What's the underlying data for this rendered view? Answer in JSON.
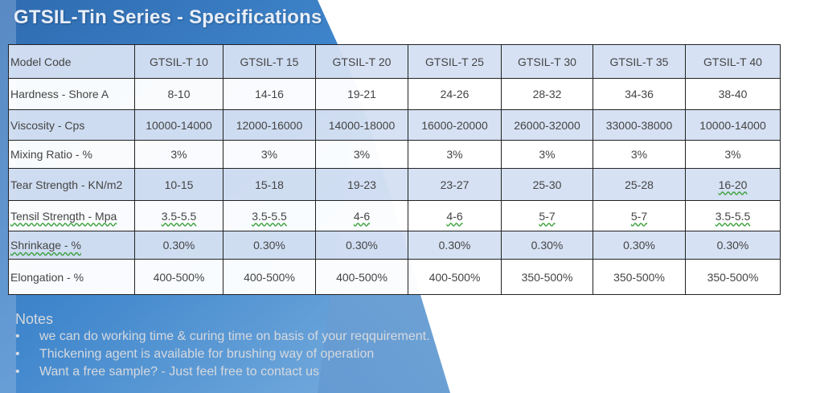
{
  "title": "GTSIL-Tin Series - Specifications",
  "columns": [
    "Model Code",
    "GTSIL-T 10",
    "GTSIL-T 15",
    "GTSIL-T 20",
    "GTSIL-T 25",
    "GTSIL-T 30",
    "GTSIL-T 35",
    "GTSIL-T 40"
  ],
  "rows": [
    {
      "label": "Hardness - Shore A",
      "values": [
        "8-10",
        "14-16",
        "19-21",
        "24-26",
        "28-32",
        "34-36",
        "38-40"
      ]
    },
    {
      "label": "Viscosity - Cps",
      "values": [
        "10000-14000",
        "12000-16000",
        "14000-18000",
        "16000-20000",
        "26000-32000",
        "33000-38000",
        "10000-14000"
      ]
    },
    {
      "label": "Mixing Ratio - %",
      "values": [
        "3%",
        "3%",
        "3%",
        "3%",
        "3%",
        "3%",
        "3%"
      ]
    },
    {
      "label": "Tear Strength - KN/m2",
      "values": [
        "10-15",
        "15-18",
        "19-23",
        "23-27",
        "25-30",
        "25-28",
        "16-20"
      ]
    },
    {
      "label": "Tensil Strength - Mpa",
      "values": [
        "3.5-5.5",
        "3.5-5.5",
        "4-6",
        "4-6",
        "5-7",
        "5-7",
        "3.5-5.5"
      ]
    },
    {
      "label": "Shrinkage - %",
      "values": [
        "0.30%",
        "0.30%",
        "0.30%",
        "0.30%",
        "0.30%",
        "0.30%",
        "0.30%"
      ]
    },
    {
      "label": "Elongation - %",
      "values": [
        "400-500%",
        "400-500%",
        "400-500%",
        "400-500%",
        "350-500%",
        "350-500%",
        "350-500%"
      ]
    }
  ],
  "notes": {
    "title": "Notes",
    "bullet": "•",
    "items": [
      "we can do working time & curing time on basis of your reqquirement.",
      "Thickening agent is available for brushing way of operation",
      "Want a free sample? - Just feel free to contact us"
    ]
  }
}
